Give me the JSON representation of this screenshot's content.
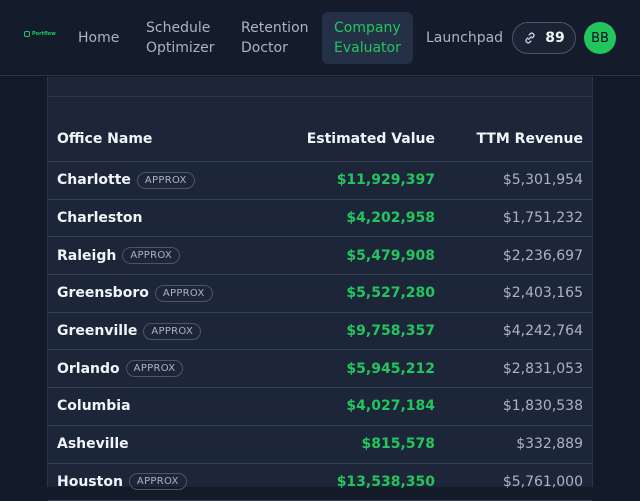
{
  "nav": {
    "logo_text": "Portflow",
    "items": [
      {
        "label_line1": "Home",
        "label_line2": ""
      },
      {
        "label_line1": "Schedule",
        "label_line2": "Optimizer"
      },
      {
        "label_line1": "Retention",
        "label_line2": "Doctor"
      },
      {
        "label_line1": "Company",
        "label_line2": "Evaluator"
      },
      {
        "label_line1": "Launchpad",
        "label_line2": ""
      }
    ],
    "active_item": "Company Evaluator",
    "credits": "89",
    "avatar_initials": "BB"
  },
  "table": {
    "headers": {
      "name": "Office Name",
      "value": "Estimated Value",
      "revenue": "TTM Revenue"
    },
    "rows": [
      {
        "name": "Charlotte",
        "badge": "APPROX",
        "value": "$11,929,397",
        "revenue": "$5,301,954"
      },
      {
        "name": "Charleston",
        "badge": "",
        "value": "$4,202,958",
        "revenue": "$1,751,232"
      },
      {
        "name": "Raleigh",
        "badge": "APPROX",
        "value": "$5,479,908",
        "revenue": "$2,236,697"
      },
      {
        "name": "Greensboro",
        "badge": "APPROX",
        "value": "$5,527,280",
        "revenue": "$2,403,165"
      },
      {
        "name": "Greenville",
        "badge": "APPROX",
        "value": "$9,758,357",
        "revenue": "$4,242,764"
      },
      {
        "name": "Orlando",
        "badge": "APPROX",
        "value": "$5,945,212",
        "revenue": "$2,831,053"
      },
      {
        "name": "Columbia",
        "badge": "",
        "value": "$4,027,184",
        "revenue": "$1,830,538"
      },
      {
        "name": "Asheville",
        "badge": "",
        "value": "$815,578",
        "revenue": "$332,889"
      },
      {
        "name": "Houston",
        "badge": "APPROX",
        "value": "$13,538,350",
        "revenue": "$5,761,000"
      }
    ]
  },
  "colors": {
    "accent": "#22c55e",
    "background": "#131b29",
    "panel": "#1d2638",
    "nav_active_bg": "#243045"
  },
  "icons": {
    "credits": "link-icon",
    "logo": "logo-icon"
  }
}
